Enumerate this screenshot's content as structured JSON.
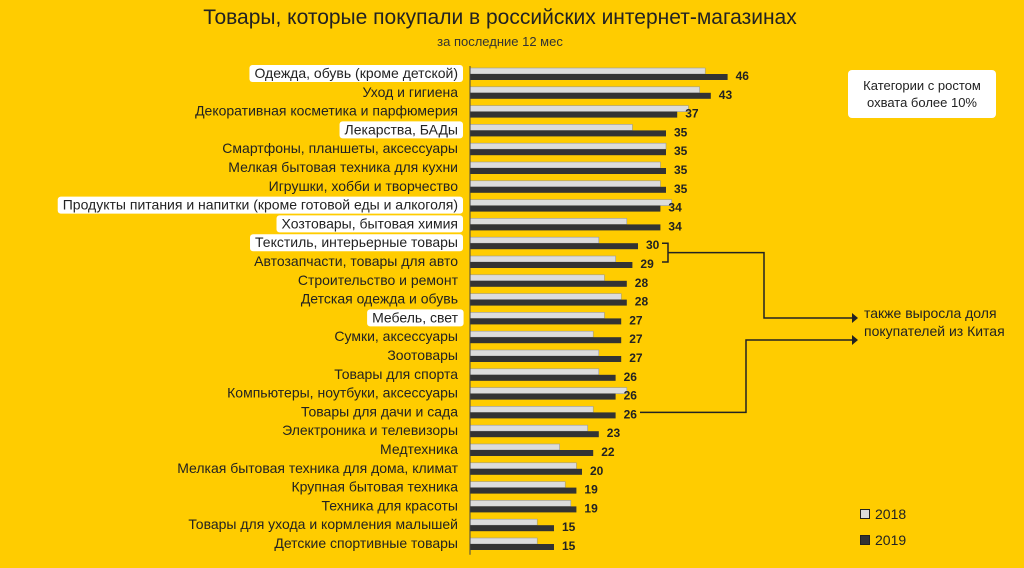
{
  "page": {
    "title": "Товары, которые покупали в российских интернет-магазинах",
    "subtitle": "за последние 12 мес"
  },
  "note_box": "Категории с ростом охвата более 10%",
  "china_note": "также выросла доля покупателей из Китая",
  "colors": {
    "background": "#FFCC00",
    "bar2018": "#DCDCDC",
    "bar2019": "#333333",
    "highlight": "#FFFFFF"
  },
  "chart_data": {
    "type": "bar",
    "orientation": "horizontal",
    "title": "Товары, которые покупали в российских интернет-магазинах",
    "subtitle": "за последние 12 мес",
    "xlim": [
      0,
      50
    ],
    "categories": [
      "Одежда, обувь (кроме детской)",
      "Уход и гигиена",
      "Декоративная косметика и парфюмерия",
      "Лекарства, БАДы",
      "Смартфоны, планшеты, аксессуары",
      "Мелкая бытовая техника для кухни",
      "Игрушки, хобби и творчество",
      "Продукты питания и напитки (кроме готовой еды и алкоголя)",
      "Хозтовары, бытовая химия",
      "Текстиль, интерьерные товары",
      "Автозапчасти, товары для авто",
      "Строительство и ремонт",
      "Детская одежда и обувь",
      "Мебель, свет",
      "Сумки, аксессуары",
      "Зоотовары",
      "Товары для спорта",
      "Компьютеры, ноутбуки, аксессуары",
      "Товары для дачи и сада",
      "Электроника и телевизоры",
      "Медтехника",
      "Мелкая бытовая техника для дома, климат",
      "Крупная бытовая техника",
      "Техника для красоты",
      "Товары для ухода и кормления малышей",
      "Детские спортивные товары"
    ],
    "highlighted": [
      true,
      false,
      false,
      true,
      false,
      false,
      false,
      true,
      true,
      true,
      false,
      false,
      false,
      true,
      false,
      false,
      false,
      false,
      false,
      false,
      false,
      false,
      false,
      false,
      false,
      false
    ],
    "series": [
      {
        "name": "2018",
        "values": [
          42,
          41,
          39,
          29,
          35,
          34,
          34,
          36,
          28,
          23,
          26,
          24,
          27,
          24,
          22,
          23,
          23,
          28,
          22,
          21,
          16,
          19,
          17,
          18,
          12,
          12
        ]
      },
      {
        "name": "2019",
        "values": [
          46,
          43,
          37,
          35,
          35,
          35,
          35,
          34,
          34,
          30,
          29,
          28,
          28,
          27,
          27,
          27,
          26,
          26,
          26,
          23,
          22,
          20,
          19,
          19,
          15,
          15
        ]
      }
    ],
    "value_labels": [
      "46",
      "43",
      "37",
      "35",
      "35",
      "35",
      "35",
      "34",
      "34",
      "30",
      "29",
      "28",
      "28",
      "27",
      "27",
      "27",
      "26",
      "26",
      "26",
      "23",
      "22",
      "20",
      "19",
      "19",
      "15",
      "15"
    ],
    "legend": [
      "2018",
      "2019"
    ],
    "china_bracket_categories": [
      "Текстиль, интерьерные товары",
      "Автозапчасти, товары для авто",
      "Товары для дачи и сада"
    ]
  }
}
